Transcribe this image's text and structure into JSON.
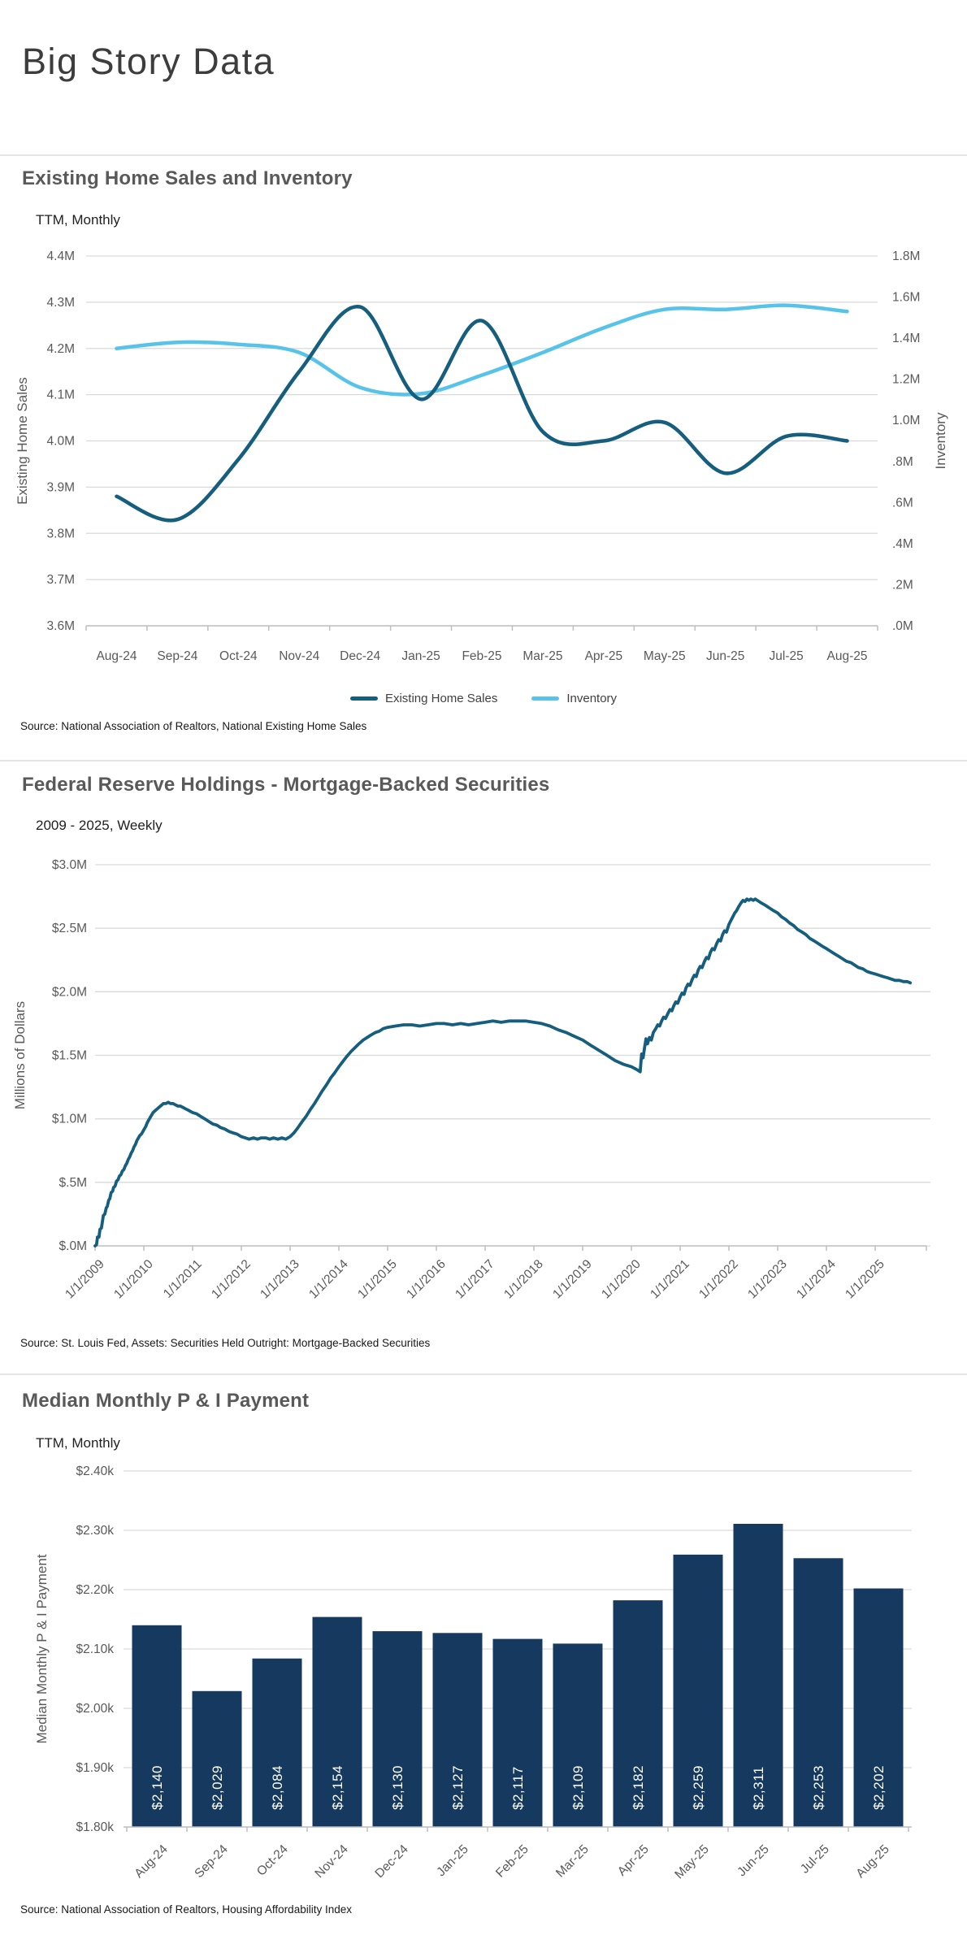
{
  "page": {
    "title": "Big Story Data"
  },
  "chart_data": [
    {
      "id": "home-sales-inventory",
      "type": "line",
      "title": "Existing Home Sales and Inventory",
      "subtitle": "TTM, Monthly",
      "source": "Source: National Association of Realtors, National Existing Home Sales",
      "grid": true,
      "legend_position": "bottom",
      "categories": [
        "Aug-24",
        "Sep-24",
        "Oct-24",
        "Nov-24",
        "Dec-24",
        "Jan-25",
        "Feb-25",
        "Mar-25",
        "Apr-25",
        "May-25",
        "Jun-25",
        "Jul-25",
        "Aug-25"
      ],
      "series": [
        {
          "name": "Existing Home Sales",
          "axis": "left",
          "color": "#155e7e",
          "values": [
            3.88,
            3.83,
            3.96,
            4.15,
            4.29,
            4.09,
            4.26,
            4.02,
            4.0,
            4.04,
            3.93,
            4.01,
            4.0
          ]
        },
        {
          "name": "Inventory",
          "axis": "right",
          "color": "#57c3e9",
          "values": [
            1.35,
            1.38,
            1.37,
            1.33,
            1.16,
            1.13,
            1.22,
            1.33,
            1.45,
            1.54,
            1.54,
            1.56,
            1.53
          ]
        }
      ],
      "left_axis": {
        "label": "Existing Home Sales",
        "min": 3.6,
        "max": 4.4,
        "tick_labels": [
          "4.4M",
          "4.3M",
          "4.2M",
          "4.1M",
          "4.0M",
          "3.9M",
          "3.8M",
          "3.7M",
          "3.6M"
        ]
      },
      "right_axis": {
        "label": "Inventory",
        "min": 0.0,
        "max": 1.8,
        "tick_labels": [
          "1.8M",
          "1.6M",
          "1.4M",
          "1.2M",
          "1.0M",
          ".8M",
          ".6M",
          ".4M",
          ".2M",
          ".0M"
        ]
      }
    },
    {
      "id": "fed-mbs-holdings",
      "type": "line",
      "title": "Federal Reserve Holdings - Mortgage-Backed Securities",
      "subtitle": "2009 - 2025, Weekly",
      "source": "Source: St. Louis Fed, Assets: Securities Held Outright: Mortgage-Backed Securities",
      "ylabel": "Millions of Dollars",
      "color": "#155e7e",
      "grid": true,
      "y_axis": {
        "min": 0,
        "max": 3.0,
        "tick_labels": [
          "$3.0M",
          "$2.5M",
          "$2.0M",
          "$1.5M",
          "$1.0M",
          "$.5M",
          "$.0M"
        ]
      },
      "x_axis": {
        "start": 2009,
        "end": 2026,
        "tick_labels": [
          "1/1/2009",
          "1/1/2010",
          "1/1/2011",
          "1/1/2012",
          "1/1/2013",
          "1/1/2014",
          "1/1/2015",
          "1/1/2016",
          "1/1/2017",
          "1/1/2018",
          "1/1/2019",
          "1/1/2020",
          "1/1/2021",
          "1/1/2022",
          "1/1/2023",
          "1/1/2024",
          "1/1/2025"
        ]
      },
      "points": [
        [
          2009.0,
          0.0
        ],
        [
          2009.03,
          0.01
        ],
        [
          2009.05,
          0.07
        ],
        [
          2009.08,
          0.07
        ],
        [
          2009.1,
          0.13
        ],
        [
          2009.13,
          0.14
        ],
        [
          2009.15,
          0.19
        ],
        [
          2009.17,
          0.24
        ],
        [
          2009.2,
          0.25
        ],
        [
          2009.23,
          0.3
        ],
        [
          2009.25,
          0.31
        ],
        [
          2009.28,
          0.36
        ],
        [
          2009.3,
          0.37
        ],
        [
          2009.33,
          0.42
        ],
        [
          2009.36,
          0.43
        ],
        [
          2009.38,
          0.46
        ],
        [
          2009.41,
          0.47
        ],
        [
          2009.44,
          0.51
        ],
        [
          2009.47,
          0.52
        ],
        [
          2009.5,
          0.55
        ],
        [
          2009.53,
          0.56
        ],
        [
          2009.56,
          0.59
        ],
        [
          2009.59,
          0.6
        ],
        [
          2009.62,
          0.63
        ],
        [
          2009.65,
          0.65
        ],
        [
          2009.68,
          0.68
        ],
        [
          2009.71,
          0.7
        ],
        [
          2009.74,
          0.73
        ],
        [
          2009.77,
          0.75
        ],
        [
          2009.8,
          0.78
        ],
        [
          2009.83,
          0.8
        ],
        [
          2009.86,
          0.83
        ],
        [
          2009.89,
          0.85
        ],
        [
          2009.92,
          0.87
        ],
        [
          2009.95,
          0.88
        ],
        [
          2009.98,
          0.9
        ],
        [
          2010.01,
          0.92
        ],
        [
          2010.04,
          0.94
        ],
        [
          2010.07,
          0.97
        ],
        [
          2010.1,
          0.99
        ],
        [
          2010.13,
          1.01
        ],
        [
          2010.16,
          1.03
        ],
        [
          2010.19,
          1.05
        ],
        [
          2010.22,
          1.06
        ],
        [
          2010.25,
          1.07
        ],
        [
          2010.28,
          1.08
        ],
        [
          2010.31,
          1.09
        ],
        [
          2010.34,
          1.1
        ],
        [
          2010.37,
          1.11
        ],
        [
          2010.4,
          1.12
        ],
        [
          2010.45,
          1.12
        ],
        [
          2010.5,
          1.13
        ],
        [
          2010.55,
          1.12
        ],
        [
          2010.6,
          1.12
        ],
        [
          2010.65,
          1.11
        ],
        [
          2010.7,
          1.1
        ],
        [
          2010.75,
          1.1
        ],
        [
          2010.8,
          1.09
        ],
        [
          2010.85,
          1.08
        ],
        [
          2010.9,
          1.07
        ],
        [
          2010.95,
          1.06
        ],
        [
          2011.0,
          1.05
        ],
        [
          2011.08,
          1.04
        ],
        [
          2011.16,
          1.02
        ],
        [
          2011.25,
          1.0
        ],
        [
          2011.33,
          0.98
        ],
        [
          2011.41,
          0.96
        ],
        [
          2011.5,
          0.95
        ],
        [
          2011.58,
          0.93
        ],
        [
          2011.66,
          0.92
        ],
        [
          2011.75,
          0.9
        ],
        [
          2011.83,
          0.89
        ],
        [
          2011.91,
          0.88
        ],
        [
          2012.0,
          0.86
        ],
        [
          2012.08,
          0.85
        ],
        [
          2012.16,
          0.84
        ],
        [
          2012.25,
          0.85
        ],
        [
          2012.33,
          0.84
        ],
        [
          2012.41,
          0.85
        ],
        [
          2012.5,
          0.85
        ],
        [
          2012.58,
          0.84
        ],
        [
          2012.66,
          0.85
        ],
        [
          2012.75,
          0.84
        ],
        [
          2012.83,
          0.85
        ],
        [
          2012.91,
          0.84
        ],
        [
          2013.0,
          0.86
        ],
        [
          2013.08,
          0.89
        ],
        [
          2013.16,
          0.93
        ],
        [
          2013.25,
          0.98
        ],
        [
          2013.33,
          1.02
        ],
        [
          2013.41,
          1.07
        ],
        [
          2013.5,
          1.12
        ],
        [
          2013.58,
          1.17
        ],
        [
          2013.66,
          1.22
        ],
        [
          2013.75,
          1.27
        ],
        [
          2013.83,
          1.32
        ],
        [
          2013.91,
          1.36
        ],
        [
          2014.0,
          1.41
        ],
        [
          2014.08,
          1.45
        ],
        [
          2014.16,
          1.49
        ],
        [
          2014.25,
          1.53
        ],
        [
          2014.33,
          1.56
        ],
        [
          2014.41,
          1.59
        ],
        [
          2014.5,
          1.62
        ],
        [
          2014.58,
          1.64
        ],
        [
          2014.66,
          1.66
        ],
        [
          2014.75,
          1.68
        ],
        [
          2014.83,
          1.69
        ],
        [
          2014.91,
          1.71
        ],
        [
          2015.0,
          1.72
        ],
        [
          2015.16,
          1.73
        ],
        [
          2015.33,
          1.74
        ],
        [
          2015.5,
          1.74
        ],
        [
          2015.66,
          1.73
        ],
        [
          2015.83,
          1.74
        ],
        [
          2016.0,
          1.75
        ],
        [
          2016.16,
          1.75
        ],
        [
          2016.33,
          1.74
        ],
        [
          2016.5,
          1.75
        ],
        [
          2016.66,
          1.74
        ],
        [
          2016.83,
          1.75
        ],
        [
          2017.0,
          1.76
        ],
        [
          2017.16,
          1.77
        ],
        [
          2017.33,
          1.76
        ],
        [
          2017.5,
          1.77
        ],
        [
          2017.66,
          1.77
        ],
        [
          2017.83,
          1.77
        ],
        [
          2018.0,
          1.76
        ],
        [
          2018.16,
          1.75
        ],
        [
          2018.33,
          1.73
        ],
        [
          2018.5,
          1.7
        ],
        [
          2018.66,
          1.68
        ],
        [
          2018.83,
          1.65
        ],
        [
          2019.0,
          1.62
        ],
        [
          2019.16,
          1.58
        ],
        [
          2019.33,
          1.54
        ],
        [
          2019.5,
          1.5
        ],
        [
          2019.66,
          1.46
        ],
        [
          2019.83,
          1.43
        ],
        [
          2020.0,
          1.41
        ],
        [
          2020.1,
          1.39
        ],
        [
          2020.18,
          1.37
        ],
        [
          2020.21,
          1.51
        ],
        [
          2020.24,
          1.48
        ],
        [
          2020.27,
          1.56
        ],
        [
          2020.3,
          1.63
        ],
        [
          2020.33,
          1.59
        ],
        [
          2020.37,
          1.64
        ],
        [
          2020.41,
          1.62
        ],
        [
          2020.45,
          1.68
        ],
        [
          2020.5,
          1.71
        ],
        [
          2020.54,
          1.74
        ],
        [
          2020.58,
          1.73
        ],
        [
          2020.62,
          1.77
        ],
        [
          2020.66,
          1.8
        ],
        [
          2020.7,
          1.79
        ],
        [
          2020.75,
          1.83
        ],
        [
          2020.79,
          1.86
        ],
        [
          2020.83,
          1.85
        ],
        [
          2020.87,
          1.89
        ],
        [
          2020.91,
          1.92
        ],
        [
          2020.95,
          1.91
        ],
        [
          2021.0,
          1.96
        ],
        [
          2021.04,
          1.99
        ],
        [
          2021.08,
          1.98
        ],
        [
          2021.12,
          2.03
        ],
        [
          2021.16,
          2.06
        ],
        [
          2021.2,
          2.05
        ],
        [
          2021.25,
          2.1
        ],
        [
          2021.29,
          2.13
        ],
        [
          2021.33,
          2.12
        ],
        [
          2021.37,
          2.17
        ],
        [
          2021.41,
          2.2
        ],
        [
          2021.45,
          2.19
        ],
        [
          2021.5,
          2.24
        ],
        [
          2021.54,
          2.27
        ],
        [
          2021.58,
          2.26
        ],
        [
          2021.62,
          2.31
        ],
        [
          2021.66,
          2.34
        ],
        [
          2021.7,
          2.33
        ],
        [
          2021.75,
          2.38
        ],
        [
          2021.79,
          2.41
        ],
        [
          2021.83,
          2.4
        ],
        [
          2021.87,
          2.45
        ],
        [
          2021.91,
          2.48
        ],
        [
          2021.95,
          2.47
        ],
        [
          2022.0,
          2.53
        ],
        [
          2022.04,
          2.56
        ],
        [
          2022.08,
          2.59
        ],
        [
          2022.12,
          2.62
        ],
        [
          2022.16,
          2.64
        ],
        [
          2022.2,
          2.67
        ],
        [
          2022.25,
          2.7
        ],
        [
          2022.29,
          2.72
        ],
        [
          2022.33,
          2.71
        ],
        [
          2022.37,
          2.73
        ],
        [
          2022.41,
          2.72
        ],
        [
          2022.45,
          2.73
        ],
        [
          2022.5,
          2.72
        ],
        [
          2022.54,
          2.73
        ],
        [
          2022.58,
          2.72
        ],
        [
          2022.62,
          2.71
        ],
        [
          2022.66,
          2.7
        ],
        [
          2022.75,
          2.68
        ],
        [
          2022.83,
          2.66
        ],
        [
          2022.91,
          2.64
        ],
        [
          2023.0,
          2.62
        ],
        [
          2023.08,
          2.59
        ],
        [
          2023.16,
          2.57
        ],
        [
          2023.25,
          2.54
        ],
        [
          2023.33,
          2.52
        ],
        [
          2023.41,
          2.49
        ],
        [
          2023.5,
          2.47
        ],
        [
          2023.58,
          2.45
        ],
        [
          2023.66,
          2.42
        ],
        [
          2023.75,
          2.4
        ],
        [
          2023.83,
          2.38
        ],
        [
          2023.91,
          2.36
        ],
        [
          2024.0,
          2.34
        ],
        [
          2024.08,
          2.32
        ],
        [
          2024.16,
          2.3
        ],
        [
          2024.25,
          2.28
        ],
        [
          2024.33,
          2.26
        ],
        [
          2024.41,
          2.24
        ],
        [
          2024.5,
          2.23
        ],
        [
          2024.58,
          2.21
        ],
        [
          2024.66,
          2.19
        ],
        [
          2024.75,
          2.18
        ],
        [
          2024.83,
          2.16
        ],
        [
          2024.91,
          2.15
        ],
        [
          2025.0,
          2.14
        ],
        [
          2025.08,
          2.13
        ],
        [
          2025.16,
          2.12
        ],
        [
          2025.25,
          2.11
        ],
        [
          2025.33,
          2.1
        ],
        [
          2025.41,
          2.09
        ],
        [
          2025.5,
          2.09
        ],
        [
          2025.58,
          2.08
        ],
        [
          2025.66,
          2.08
        ],
        [
          2025.72,
          2.07
        ]
      ]
    },
    {
      "id": "median-pi-payment",
      "type": "bar",
      "title": "Median Monthly P & I Payment",
      "subtitle": "TTM, Monthly",
      "source": "Source: National Association of Realtors, Housing Affordability Index",
      "ylabel": "Median Monthly P & I Payment",
      "bar_color": "#163a5f",
      "label_color": "#ffffff",
      "grid": true,
      "categories": [
        "Aug-24",
        "Sep-24",
        "Oct-24",
        "Nov-24",
        "Dec-24",
        "Jan-25",
        "Feb-25",
        "Mar-25",
        "Apr-25",
        "May-25",
        "Jun-25",
        "Jul-25",
        "Aug-25"
      ],
      "values": [
        2140,
        2029,
        2084,
        2154,
        2130,
        2127,
        2117,
        2109,
        2182,
        2259,
        2311,
        2253,
        2202
      ],
      "value_labels": [
        "$2,140",
        "$2,029",
        "$2,084",
        "$2,154",
        "$2,130",
        "$2,127",
        "$2,117",
        "$2,109",
        "$2,182",
        "$2,259",
        "$2,311",
        "$2,253",
        "$2,202"
      ],
      "y_axis": {
        "min": 1800,
        "max": 2400,
        "tick_labels": [
          "$2.40k",
          "$2.30k",
          "$2.20k",
          "$2.10k",
          "$2.00k",
          "$1.90k",
          "$1.80k"
        ]
      }
    }
  ]
}
